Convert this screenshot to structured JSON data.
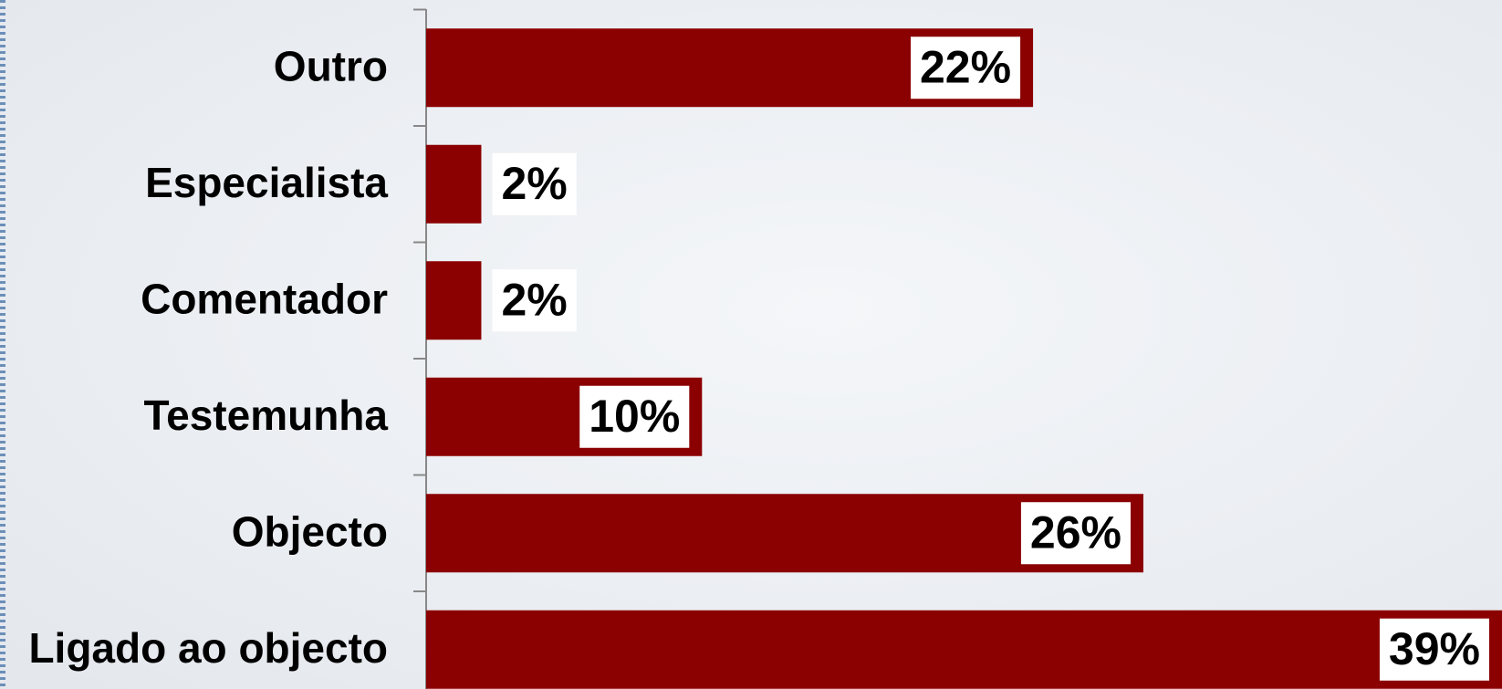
{
  "chart_data": {
    "type": "bar",
    "orientation": "horizontal",
    "categories": [
      "Outro",
      "Especialista",
      "Comentador",
      "Testemunha",
      "Objecto",
      "Ligado ao objecto"
    ],
    "values": [
      22,
      2,
      2,
      10,
      26,
      39
    ],
    "value_labels": [
      "22%",
      "2%",
      "2%",
      "10%",
      "26%",
      "39%"
    ],
    "color": "#8b0000",
    "xlim": [
      0,
      39
    ]
  }
}
